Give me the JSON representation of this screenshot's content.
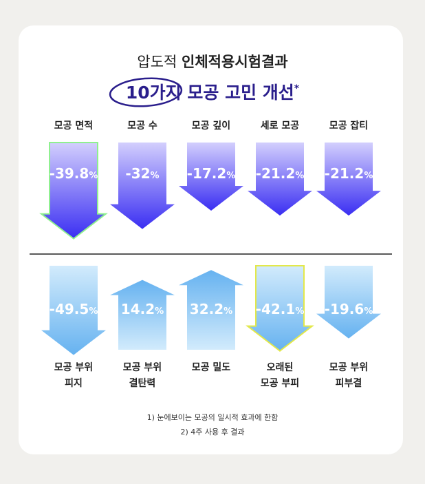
{
  "header": {
    "title_light": "압도적",
    "title_bold": "인체적용시험결과",
    "highlight": "10가지",
    "subtitle": "모공 고민 개선",
    "mark": "*"
  },
  "unit": "%",
  "rows": [
    {
      "items": [
        {
          "label": [
            "모공 면적"
          ],
          "value": -39.8,
          "outline": "#8ff08f"
        },
        {
          "label": [
            "모공 수"
          ],
          "value": -32
        },
        {
          "label": [
            "모공 깊이"
          ],
          "value": -17.2
        },
        {
          "label": [
            "세로 모공"
          ],
          "value": -21.2
        },
        {
          "label": [
            "모공 잡티"
          ],
          "value": -21.2
        }
      ]
    },
    {
      "items": [
        {
          "label": [
            "모공 부위",
            "피지"
          ],
          "value": -49.5
        },
        {
          "label": [
            "모공 부위",
            "결탄력"
          ],
          "value": 14.2
        },
        {
          "label": [
            "모공 밀도"
          ],
          "value": 32.2
        },
        {
          "label": [
            "오래된",
            "모공 부피"
          ],
          "value": -42.1,
          "outline": "#e3e84a"
        },
        {
          "label": [
            "모공 부위",
            "피부결"
          ],
          "value": -19.6
        }
      ]
    }
  ],
  "footnotes": [
    "1) 눈에보이는 모공의 일시적 효과에 한함",
    "2) 4주 사용 후 결과"
  ]
}
